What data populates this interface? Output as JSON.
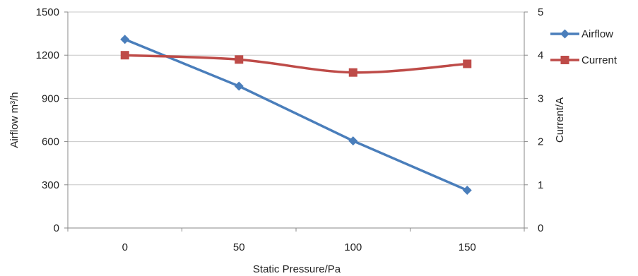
{
  "chart_data": {
    "type": "line",
    "x": [
      0,
      50,
      100,
      150
    ],
    "xlabel": "Static Pressure/Pa",
    "ylabel_left": "Airflow  m³/h",
    "ylabel_right": "Current/A",
    "ylim_left": [
      0,
      1500
    ],
    "yticks_left": [
      0,
      300,
      600,
      900,
      1200,
      1500
    ],
    "ylim_right": [
      0,
      5
    ],
    "yticks_right": [
      0,
      1,
      2,
      3,
      4,
      5
    ],
    "grid": "horizontal",
    "legend_position": "right",
    "series": [
      {
        "name": "Airflow",
        "axis": "left",
        "color": "#4a7ebb",
        "marker": "diamond",
        "values": [
          1310,
          985,
          605,
          262
        ]
      },
      {
        "name": "Current",
        "axis": "right",
        "color": "#be4b48",
        "marker": "square",
        "values": [
          4.0,
          3.9,
          3.6,
          3.8
        ]
      }
    ]
  }
}
